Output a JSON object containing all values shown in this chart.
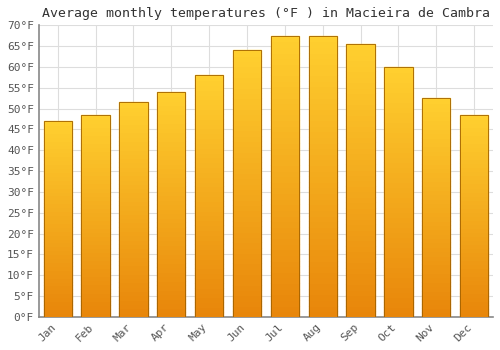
{
  "title": "Average monthly temperatures (°F ) in Macieira de Cambra",
  "months": [
    "Jan",
    "Feb",
    "Mar",
    "Apr",
    "May",
    "Jun",
    "Jul",
    "Aug",
    "Sep",
    "Oct",
    "Nov",
    "Dec"
  ],
  "values": [
    47,
    48.5,
    51.5,
    54,
    58,
    64,
    67.5,
    67.5,
    65.5,
    60,
    52.5,
    48.5
  ],
  "bar_color_bottom": "#E8860A",
  "bar_color_top": "#FFD030",
  "bar_edge_color": "#A06000",
  "background_color": "#FFFFFF",
  "plot_bg_color": "#FFFFFF",
  "grid_color": "#DDDDDD",
  "ylim": [
    0,
    70
  ],
  "ytick_step": 5,
  "title_fontsize": 9.5,
  "tick_fontsize": 8,
  "tick_font_family": "monospace",
  "bar_width": 0.75
}
